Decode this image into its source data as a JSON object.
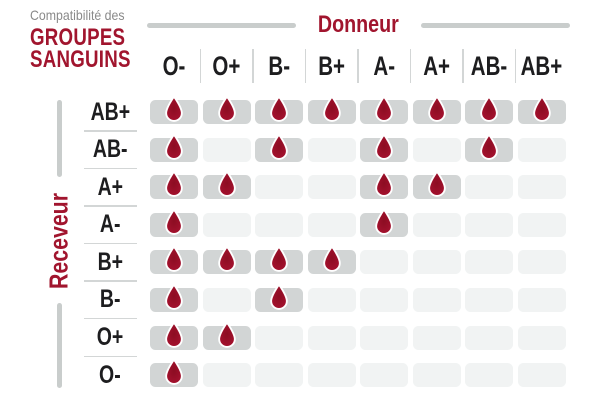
{
  "title": {
    "eyebrow": "Compatibilité des",
    "line1": "GROUPES",
    "line2": "SANGUINS"
  },
  "axes": {
    "donor_label": "Donneur",
    "receiver_label": "Receveur"
  },
  "icons": {
    "compatible_marker": "blood-drop-icon"
  },
  "chart_data": {
    "type": "heatmap",
    "title": "Compatibilité des groupes sanguins",
    "x_axis_label": "Donneur",
    "y_axis_label": "Receveur",
    "donors": [
      "O-",
      "O+",
      "B-",
      "B+",
      "A-",
      "A+",
      "AB-",
      "AB+"
    ],
    "receivers": [
      "AB+",
      "AB-",
      "A+",
      "A-",
      "B+",
      "B-",
      "O+",
      "O-"
    ],
    "compatible": [
      [
        1,
        1,
        1,
        1,
        1,
        1,
        1,
        1
      ],
      [
        1,
        0,
        1,
        0,
        1,
        0,
        1,
        0
      ],
      [
        1,
        1,
        0,
        0,
        1,
        1,
        0,
        0
      ],
      [
        1,
        0,
        0,
        0,
        1,
        0,
        0,
        0
      ],
      [
        1,
        1,
        1,
        1,
        0,
        0,
        0,
        0
      ],
      [
        1,
        0,
        1,
        0,
        0,
        0,
        0,
        0
      ],
      [
        1,
        1,
        0,
        0,
        0,
        0,
        0,
        0
      ],
      [
        1,
        0,
        0,
        0,
        0,
        0,
        0,
        0
      ]
    ],
    "marker_meaning": "drop = donor compatible with receiver",
    "legend_position": "none",
    "grid": "rounded cells, filled gray when compatible, light gray when not"
  },
  "colors": {
    "accent_red": "#a1152e",
    "drop_red": "#a81230",
    "drop_red_dark": "#8c0d22",
    "drop_outline": "#ffffff",
    "text_dark": "#1d1d1f",
    "text_gray": "#8a8a8a",
    "line_gray": "#c9cdcc",
    "divider_gray": "#d3d6d6",
    "cell_filled": "#d2d5d5",
    "cell_empty": "#f1f3f3",
    "background": "#ffffff"
  }
}
